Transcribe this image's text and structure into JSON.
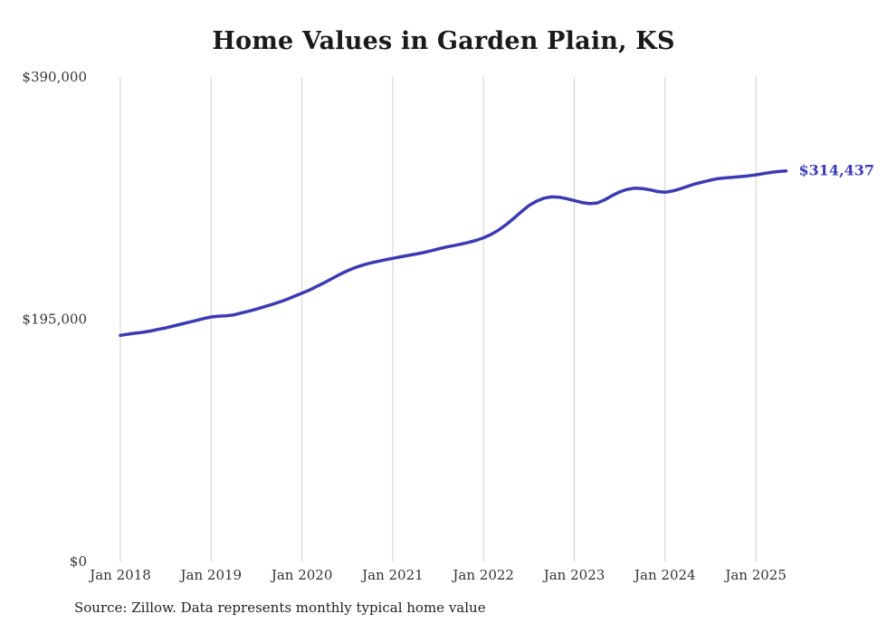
{
  "chart_data": {
    "type": "line",
    "title": "Home Values in Garden Plain, KS",
    "source_note": "Source: Zillow. Data represents monthly typical home value",
    "x_tick_labels": [
      "Jan 2018",
      "Jan 2019",
      "Jan 2020",
      "Jan 2021",
      "Jan 2022",
      "Jan 2023",
      "Jan 2024",
      "Jan 2025"
    ],
    "y_ticks": [
      {
        "label": "$0",
        "value": 0
      },
      {
        "label": "$195,000",
        "value": 195000
      },
      {
        "label": "$390,000",
        "value": 390000
      }
    ],
    "ylim": [
      0,
      390000
    ],
    "x_start": "Jan 2018",
    "x_interval": "monthly",
    "grid": "vertical-only",
    "legend": "none",
    "series": [
      {
        "name": "Typical home value",
        "values": [
          182000,
          183000,
          183800,
          184500,
          185500,
          186800,
          188000,
          189500,
          191000,
          192500,
          194000,
          195500,
          196800,
          197500,
          197800,
          198500,
          200000,
          201500,
          203200,
          205000,
          206800,
          208800,
          211000,
          213500,
          216000,
          218500,
          221500,
          224500,
          227800,
          231000,
          234000,
          236500,
          238500,
          240200,
          241500,
          242800,
          244000,
          245200,
          246300,
          247400,
          248600,
          250000,
          251500,
          253000,
          254200,
          255400,
          256800,
          258400,
          260500,
          263200,
          266800,
          271200,
          276200,
          281500,
          286500,
          290000,
          292500,
          293500,
          293200,
          292000,
          290500,
          289000,
          288000,
          288500,
          291000,
          294500,
          297500,
          299500,
          300500,
          300200,
          299200,
          297800,
          297200,
          298200,
          300000,
          302000,
          304000,
          305500,
          307000,
          308200,
          308800,
          309300,
          309800,
          310400,
          311200,
          312200,
          313200,
          313900,
          314437
        ]
      }
    ],
    "final_value": 314437,
    "final_value_label": "$314,437"
  },
  "colors": {
    "line": "#3b3bb3",
    "grid": "#cfcfcf",
    "title": "#1a1a1a",
    "axis_text": "#333333",
    "source_text": "#222222"
  }
}
